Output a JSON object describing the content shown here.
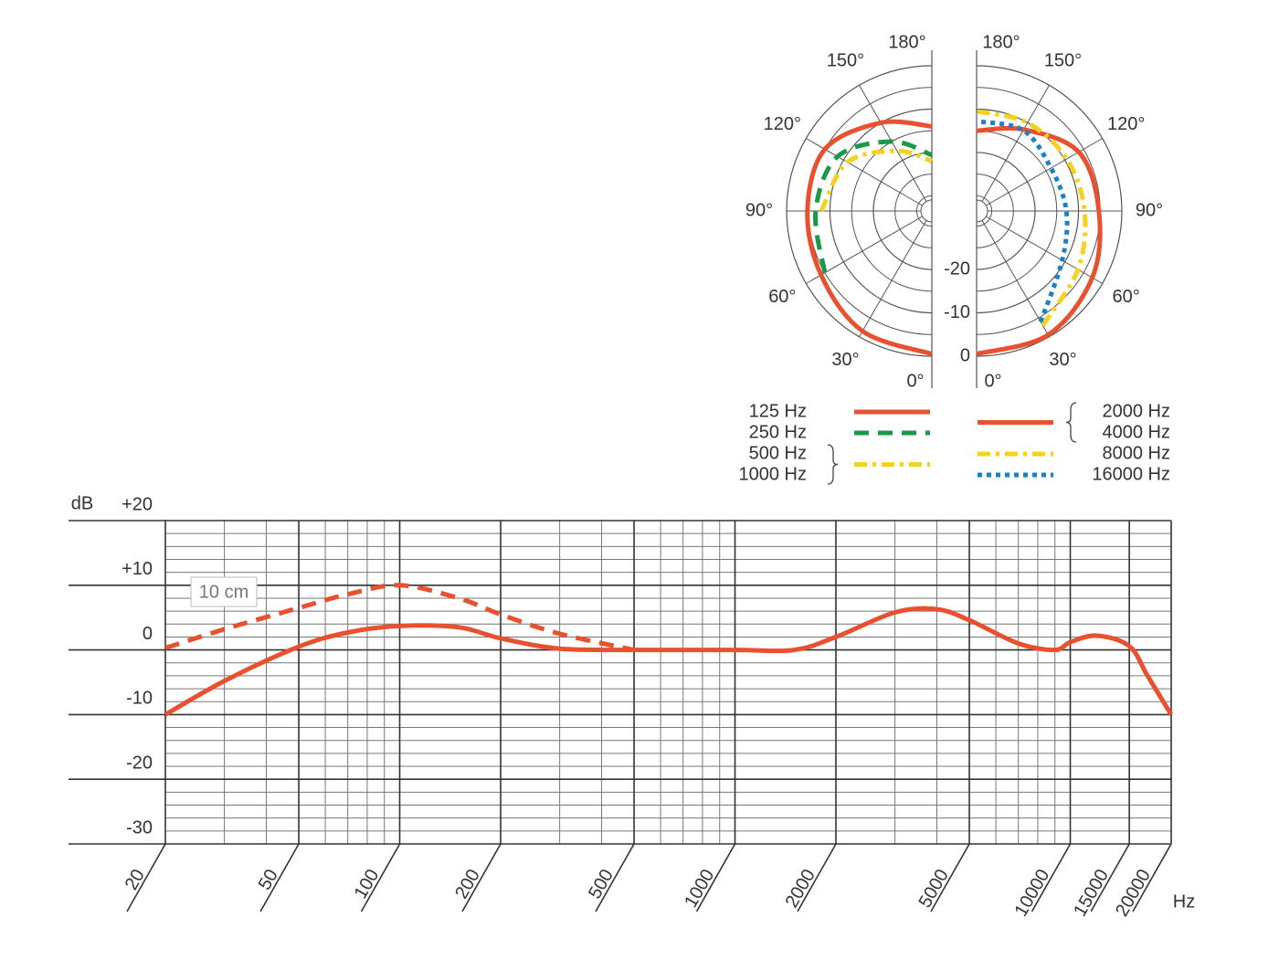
{
  "chart_data": [
    {
      "type": "polar",
      "thetaticks": [
        {
          "value": 0,
          "label": "0°"
        },
        {
          "value": 30,
          "label": "30°"
        },
        {
          "value": 60,
          "label": "60°"
        },
        {
          "value": 90,
          "label": "90°"
        },
        {
          "value": 120,
          "label": "120°"
        },
        {
          "value": 150,
          "label": "150°"
        },
        {
          "value": 180,
          "label": "180°"
        }
      ],
      "rlim": [
        -33.5,
        0
      ],
      "rticks": [
        0,
        -10,
        -20
      ],
      "theta": [
        0,
        30,
        60,
        90,
        120,
        150,
        180
      ],
      "series": [
        {
          "names": [
            "125 Hz"
          ],
          "side": "left",
          "color": "#e8502f",
          "dash": "solid",
          "values": [
            -0.5,
            -1.5,
            -4,
            -4.8,
            -5,
            -10,
            -14
          ]
        },
        {
          "names": [
            "250 Hz"
          ],
          "side": "left",
          "color": "#1a9a48",
          "dash": "dashed",
          "values": [
            null,
            null,
            -5,
            -6.7,
            -8.4,
            -15,
            -20.6
          ]
        },
        {
          "names": [
            "500 Hz",
            "1000 Hz"
          ],
          "side": "left",
          "color": "#f5d21f",
          "dash": "dashdot",
          "values": [
            null,
            null,
            null,
            -8,
            -11,
            -17.5,
            -22
          ]
        },
        {
          "names": [
            "2000 Hz",
            "4000 Hz"
          ],
          "side": "right",
          "color": "#e8502f",
          "dash": "solid",
          "values": [
            -0.5,
            -0.5,
            -2.7,
            -5.3,
            -6.3,
            -11.8,
            -15
          ]
        },
        {
          "names": [
            "8000 Hz"
          ],
          "side": "right",
          "color": "#f5d21f",
          "dash": "dashdot",
          "values": [
            null,
            -3,
            -6.5,
            -8.6,
            -9.5,
            -10,
            -10.5
          ]
        },
        {
          "names": [
            "16000 Hz"
          ],
          "side": "right",
          "color": "#1a80c8",
          "dash": "dotted",
          "values": [
            null,
            -4,
            -10.7,
            -12.8,
            -13.7,
            -12,
            -12.8
          ]
        }
      ]
    },
    {
      "type": "line",
      "log_x": true,
      "ylabel": "dB",
      "xlabel": "Hz",
      "grid": true,
      "x": [
        20,
        30,
        50,
        70,
        100,
        150,
        200,
        300,
        500,
        1000,
        1500,
        2000,
        3000,
        4000,
        5000,
        7000,
        9000,
        10000,
        12000,
        15000,
        17000,
        20000
      ],
      "xlim": [
        20,
        20000
      ],
      "xticks": [
        20,
        50,
        100,
        200,
        500,
        1000,
        2000,
        5000,
        10000,
        15000,
        20000
      ],
      "ylim": [
        -30,
        20
      ],
      "yticks": [
        {
          "value": 20,
          "label": "+20"
        },
        {
          "value": 10,
          "label": "+10"
        },
        0,
        -10,
        -20,
        -30
      ],
      "series": [
        {
          "color": "#e8502f",
          "dash": "solid",
          "values": [
            -10,
            -4.8,
            0.5,
            2.7,
            3.7,
            3.5,
            1.8,
            0.2,
            0,
            0,
            0,
            2,
            5.8,
            6.3,
            4.6,
            1,
            0,
            1.2,
            2.2,
            0.6,
            -4,
            -10
          ]
        },
        {
          "name": "10 cm",
          "color": "#e8502f",
          "dash": "dashed",
          "values": [
            0.3,
            3.2,
            6.5,
            8.6,
            10,
            8,
            5.5,
            2.5,
            0,
            null,
            null,
            null,
            null,
            null,
            null,
            null,
            null,
            null,
            null,
            null,
            null,
            null
          ]
        }
      ]
    }
  ]
}
